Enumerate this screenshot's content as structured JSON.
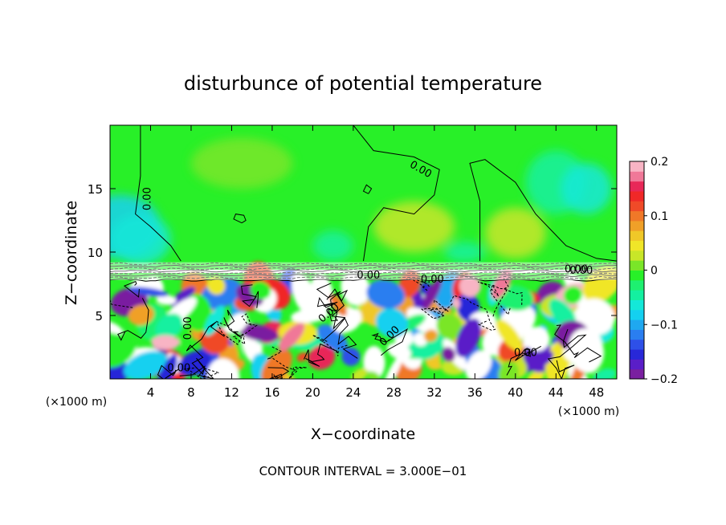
{
  "chart_data": {
    "type": "heatmap",
    "title": "disturbunce of potential temperature",
    "xlabel": "X−coordinate",
    "ylabel": "Z−coordinate",
    "x_unit_label": "(×1000 m)",
    "x_unit_label_right": "(×1000 m)",
    "footer": "CONTOUR INTERVAL = 3.000E−01",
    "xlim": [
      0,
      50
    ],
    "ylim": [
      0,
      20
    ],
    "x_ticks": [
      4,
      8,
      12,
      16,
      20,
      24,
      28,
      32,
      36,
      40,
      44,
      48
    ],
    "x_tick_labels": [
      "4",
      "8",
      "12",
      "16",
      "20",
      "24",
      "28",
      "32",
      "36",
      "40",
      "44",
      "48"
    ],
    "y_ticks": [
      5,
      10,
      15
    ],
    "y_tick_labels": [
      "5",
      "10",
      "15"
    ],
    "colorbar": {
      "min": -0.2,
      "max": 0.2,
      "ticks": [
        0.2,
        0.1,
        0,
        -0.1,
        -0.2
      ],
      "tick_labels": [
        "0.2",
        "0.1",
        "0",
        "−0.1",
        "−0.2"
      ],
      "colors": [
        "#7a1fa0",
        "#5a1ec8",
        "#2828d8",
        "#2e50e8",
        "#2a7ef0",
        "#1fa8f0",
        "#14d0f0",
        "#14e8d8",
        "#14f0a0",
        "#1ef070",
        "#28f028",
        "#7ae628",
        "#c8e628",
        "#f0e628",
        "#f0c828",
        "#f0a028",
        "#f07828",
        "#f04a28",
        "#f02828",
        "#e82858",
        "#f07898",
        "#f8b4c4"
      ]
    },
    "contour_labels": [
      "0.00",
      "0.00",
      "0.00",
      "0.00",
      "0.00",
      "0.00",
      "0.00",
      "0.00",
      "0.00",
      "0.00",
      "0.00"
    ],
    "contour_label_positions": [
      {
        "x": 4.0,
        "y": 14.2,
        "rot": -90
      },
      {
        "x": 30.5,
        "y": 16.3,
        "rot": 30
      },
      {
        "x": 25.5,
        "y": 7.9,
        "rot": 0
      },
      {
        "x": 31.8,
        "y": 7.6,
        "rot": 0
      },
      {
        "x": 46.0,
        "y": 8.4,
        "rot": 0
      },
      {
        "x": 8.0,
        "y": 4.0,
        "rot": -90
      },
      {
        "x": 21.8,
        "y": 5.0,
        "rot": -40
      },
      {
        "x": 27.8,
        "y": 3.2,
        "rot": -45
      },
      {
        "x": 41.0,
        "y": 1.8,
        "rot": 0
      },
      {
        "x": 6.8,
        "y": 0.6,
        "rot": 0
      },
      {
        "x": 46.5,
        "y": 8.3,
        "rot": 0
      }
    ],
    "field_sample": {
      "upper_layer_z_range": [
        9.2,
        20
      ],
      "upper_layer_value_approx": 0.0,
      "mixed_layer_z_range": [
        0,
        7.8
      ],
      "mixed_layer_value_range": [
        -0.2,
        0.2
      ],
      "inversion_z": 8.5
    }
  }
}
